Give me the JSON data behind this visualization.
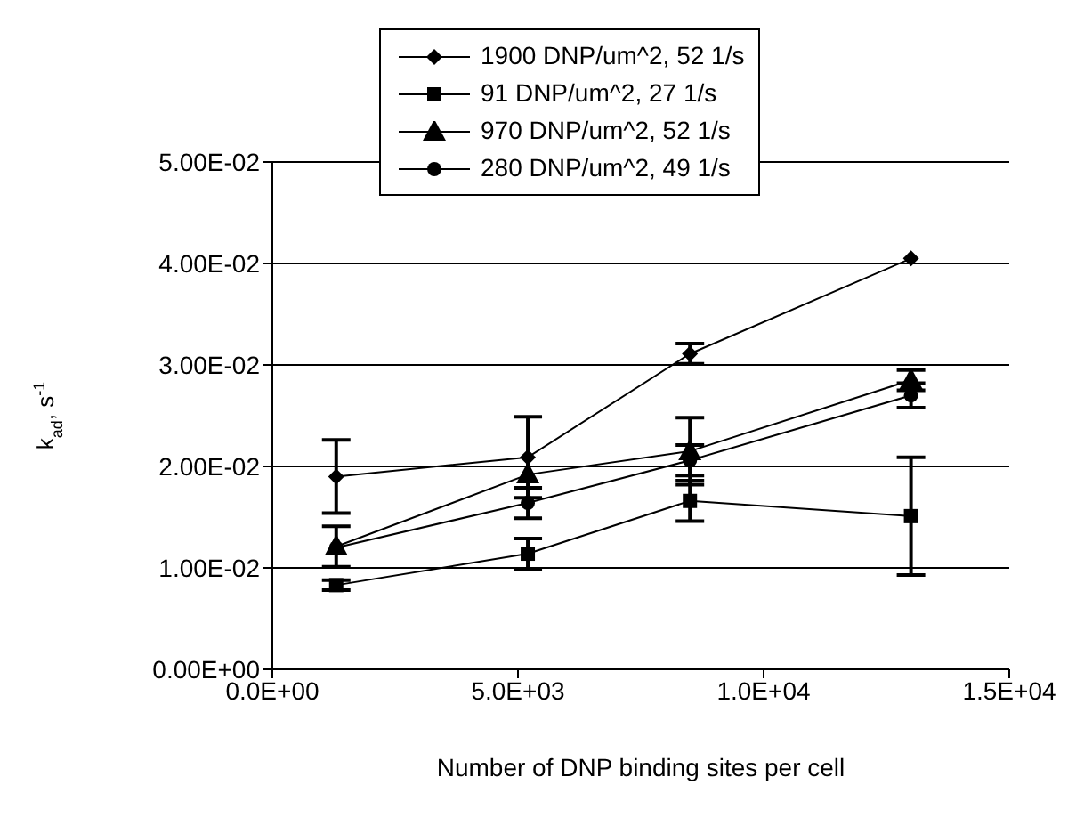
{
  "chart_data": {
    "type": "line",
    "xlabel": "Number of DNP binding sites per cell",
    "ylabel": "k$_{ad}$, s$^{-1}$",
    "x": [
      1300,
      5200,
      8500,
      13000
    ],
    "series": [
      {
        "name": "1900 DNP/um^2, 52 1/s",
        "color": "#000000",
        "marker": "diamond",
        "values": [
          0.019,
          0.0209,
          0.0311,
          0.0405
        ],
        "errors": [
          0.0036,
          0.004,
          0.001,
          null
        ]
      },
      {
        "name": "91 DNP/um^2, 27 1/s",
        "color": "#000000",
        "marker": "square",
        "values": [
          0.0083,
          0.0114,
          0.0166,
          0.0151
        ],
        "errors": [
          0.0005,
          0.0015,
          0.002,
          0.0058
        ]
      },
      {
        "name": "970 DNP/um^2, 52 1/s",
        "color": "#000000",
        "marker": "triangle",
        "values": [
          0.0121,
          0.0192,
          0.0215,
          0.0285
        ],
        "errors": [
          0.002,
          null,
          0.0033,
          0.001
        ]
      },
      {
        "name": "280 DNP/um^2, 49 1/s",
        "color": "#000000",
        "marker": "circle",
        "values": [
          0.012,
          0.0164,
          0.0206,
          0.027
        ],
        "errors": [
          null,
          0.0015,
          0.0015,
          0.0012
        ]
      }
    ],
    "xlim": [
      0,
      15000
    ],
    "xticks": [
      {
        "value": 0,
        "label": "0.0E+00"
      },
      {
        "value": 5000,
        "label": "5.0E+03"
      },
      {
        "value": 10000,
        "label": "1.0E+04"
      },
      {
        "value": 15000,
        "label": "1.5E+04"
      }
    ],
    "ylim": [
      0,
      0.05
    ],
    "yticks": [
      {
        "value": 0,
        "label": "0.00E+00"
      },
      {
        "value": 0.01,
        "label": "1.00E-02"
      },
      {
        "value": 0.02,
        "label": "2.00E-02"
      },
      {
        "value": 0.03,
        "label": "3.00E-02"
      },
      {
        "value": 0.04,
        "label": "4.00E-02"
      },
      {
        "value": 0.05,
        "label": "5.00E-02"
      }
    ],
    "grid": "y",
    "legend": "top",
    "line_style": "solid"
  }
}
